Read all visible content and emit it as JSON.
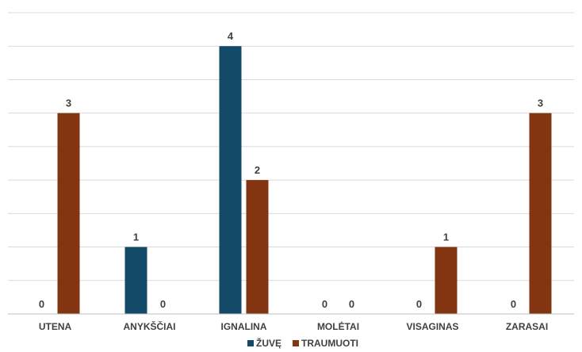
{
  "chart_data": {
    "type": "bar",
    "categories": [
      "UTENA",
      "ANYKŠČIAI",
      "IGNALINA",
      "MOLĖTAI",
      "VISAGINAS",
      "ZARASAI"
    ],
    "series": [
      {
        "name": "ŽUVĘ",
        "values": [
          0,
          1,
          4,
          0,
          0,
          0
        ],
        "color": "#124a68"
      },
      {
        "name": "TRAUMUOTI",
        "values": [
          3,
          0,
          2,
          0,
          1,
          3
        ],
        "color": "#833411"
      }
    ],
    "ylim": [
      0,
      4.5
    ],
    "grid": true,
    "legend": "bottom-center",
    "data_labels": true
  }
}
